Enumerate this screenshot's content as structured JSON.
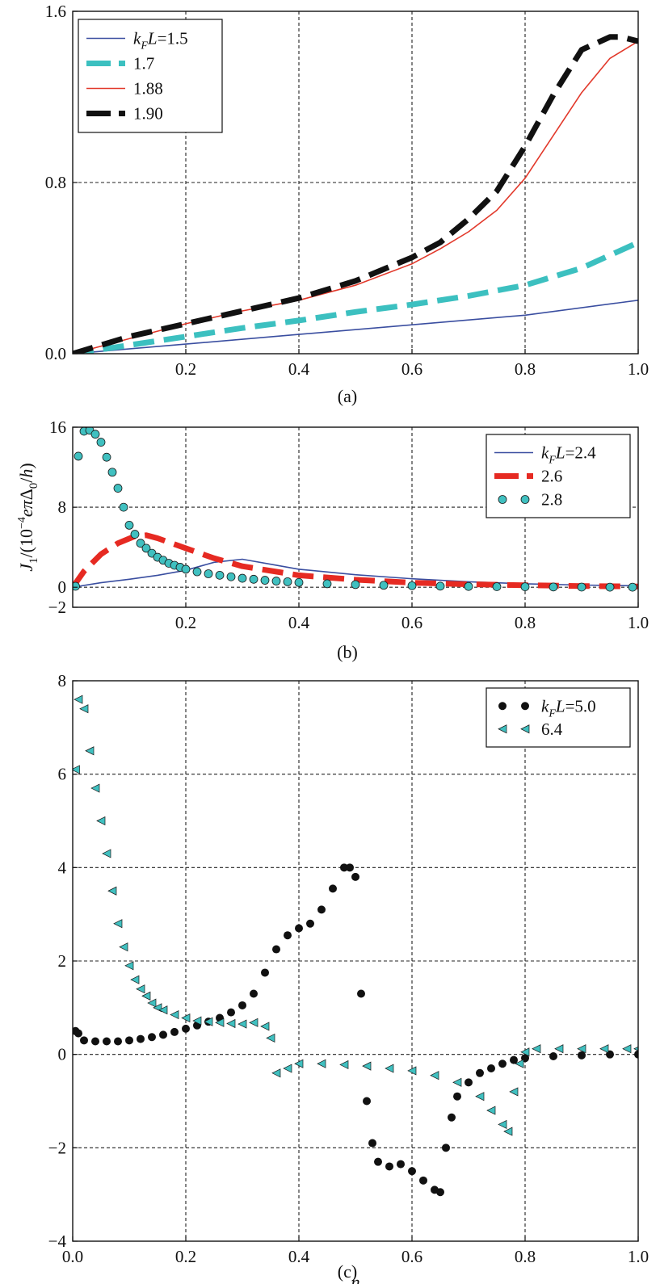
{
  "figure": {
    "panels_count": 3
  },
  "chart_data": [
    {
      "type": "line",
      "panel_label": "(a)",
      "xlabel": "",
      "ylabel": "",
      "xlim": [
        0.0,
        1.0
      ],
      "ylim": [
        0.0,
        1.6
      ],
      "xticks": [
        0.2,
        0.4,
        0.6,
        0.8,
        1.0
      ],
      "xtick_labels": [
        "0.2",
        "0.4",
        "0.6",
        "0.8",
        "1.0"
      ],
      "yticks": [
        0.0,
        0.8,
        1.6
      ],
      "ytick_labels": [
        "0.0",
        "0.8",
        "1.6"
      ],
      "grid": true,
      "legend_position": "top-left",
      "legend_prefix": "k_F L = ",
      "series": [
        {
          "name": "1.5",
          "style": "thin-solid",
          "color": "#3a4ea0",
          "x": [
            0,
            0.2,
            0.4,
            0.6,
            0.8,
            1.0
          ],
          "y": [
            0,
            0.045,
            0.09,
            0.135,
            0.18,
            0.25
          ]
        },
        {
          "name": "1.7",
          "style": "thick-dashed",
          "color": "#3cc0c0",
          "x": [
            0,
            0.1,
            0.2,
            0.3,
            0.4,
            0.5,
            0.6,
            0.7,
            0.8,
            0.9,
            1.0
          ],
          "y": [
            0,
            0.04,
            0.08,
            0.12,
            0.155,
            0.195,
            0.23,
            0.27,
            0.32,
            0.4,
            0.52
          ]
        },
        {
          "name": "1.88",
          "style": "thin-solid",
          "color": "#e2382a",
          "x": [
            0,
            0.1,
            0.2,
            0.3,
            0.4,
            0.5,
            0.6,
            0.65,
            0.7,
            0.75,
            0.8,
            0.85,
            0.9,
            0.95,
            1.0
          ],
          "y": [
            0,
            0.07,
            0.14,
            0.2,
            0.25,
            0.32,
            0.42,
            0.49,
            0.57,
            0.67,
            0.82,
            1.02,
            1.22,
            1.38,
            1.46
          ]
        },
        {
          "name": "1.90",
          "style": "thick-dashed",
          "color": "#111111",
          "x": [
            0,
            0.1,
            0.2,
            0.3,
            0.4,
            0.5,
            0.6,
            0.65,
            0.7,
            0.75,
            0.8,
            0.85,
            0.9,
            0.95,
            0.97,
            1.0
          ],
          "y": [
            0,
            0.08,
            0.14,
            0.2,
            0.26,
            0.34,
            0.45,
            0.52,
            0.63,
            0.76,
            0.97,
            1.21,
            1.42,
            1.48,
            1.48,
            1.46
          ]
        }
      ]
    },
    {
      "type": "line",
      "panel_label": "(b)",
      "xlabel": "",
      "ylabel": "J_1/(10^-4 eπΔ_0/h)",
      "xlim": [
        0.0,
        1.0
      ],
      "ylim": [
        -2,
        16
      ],
      "xticks": [
        0.2,
        0.4,
        0.6,
        0.8,
        1.0
      ],
      "xtick_labels": [
        "0.2",
        "0.4",
        "0.6",
        "0.8",
        "1.0"
      ],
      "yticks": [
        -2,
        0,
        8,
        16
      ],
      "ytick_labels": [
        "−2",
        "0",
        "8",
        "16"
      ],
      "grid": true,
      "legend_position": "top-right",
      "legend_prefix": "k_F L = ",
      "series": [
        {
          "name": "2.4",
          "style": "thin-solid",
          "color": "#3a4ea0",
          "x": [
            0,
            0.05,
            0.1,
            0.15,
            0.2,
            0.25,
            0.3,
            0.35,
            0.4,
            0.5,
            0.6,
            0.7,
            0.8,
            0.9,
            1.0
          ],
          "y": [
            0,
            0.45,
            0.8,
            1.2,
            1.7,
            2.5,
            2.8,
            2.3,
            1.8,
            1.25,
            0.85,
            0.55,
            0.35,
            0.22,
            0.15
          ]
        },
        {
          "name": "2.6",
          "style": "thick-dashed",
          "color": "#e62a22",
          "x": [
            0,
            0.02,
            0.05,
            0.08,
            0.11,
            0.13,
            0.15,
            0.2,
            0.25,
            0.3,
            0.4,
            0.5,
            0.6,
            0.7,
            0.8,
            0.9,
            1.0
          ],
          "y": [
            0,
            1.6,
            3.3,
            4.4,
            5.1,
            5.2,
            4.9,
            3.9,
            2.9,
            2.1,
            1.2,
            0.75,
            0.45,
            0.3,
            0.2,
            0.12,
            0.08
          ]
        },
        {
          "name": "2.8",
          "style": "markers-circle",
          "color": "#40c0c0",
          "x": [
            0.005,
            0.01,
            0.02,
            0.03,
            0.04,
            0.05,
            0.06,
            0.07,
            0.08,
            0.09,
            0.1,
            0.11,
            0.12,
            0.13,
            0.14,
            0.15,
            0.16,
            0.17,
            0.18,
            0.19,
            0.2,
            0.22,
            0.24,
            0.26,
            0.28,
            0.3,
            0.32,
            0.34,
            0.36,
            0.38,
            0.4,
            0.45,
            0.5,
            0.55,
            0.6,
            0.65,
            0.7,
            0.75,
            0.8,
            0.85,
            0.9,
            0.95,
            0.99
          ],
          "y": [
            0.1,
            13.1,
            15.6,
            15.7,
            15.3,
            14.5,
            13.0,
            11.5,
            9.9,
            8.0,
            6.2,
            5.3,
            4.4,
            3.9,
            3.4,
            3.0,
            2.7,
            2.4,
            2.2,
            2.0,
            1.8,
            1.55,
            1.35,
            1.2,
            1.05,
            0.9,
            0.8,
            0.7,
            0.62,
            0.55,
            0.48,
            0.35,
            0.27,
            0.2,
            0.15,
            0.11,
            0.08,
            0.06,
            0.05,
            0.03,
            0.02,
            0.01,
            0.01
          ]
        }
      ]
    },
    {
      "type": "scatter",
      "panel_label": "(c)",
      "xlabel": "η",
      "ylabel": "",
      "xlim": [
        0.0,
        1.0
      ],
      "ylim": [
        -4,
        8
      ],
      "xticks": [
        0.0,
        0.2,
        0.4,
        0.6,
        0.8,
        1.0
      ],
      "xtick_labels": [
        "0.0",
        "0.2",
        "0.4",
        "0.6",
        "0.8",
        "1.0"
      ],
      "yticks": [
        -4,
        -2,
        0,
        2,
        4,
        6,
        8
      ],
      "ytick_labels": [
        "−4",
        "−2",
        "0",
        "2",
        "4",
        "6",
        "8"
      ],
      "grid": true,
      "legend_position": "top-right",
      "legend_prefix": "k_F L = ",
      "series": [
        {
          "name": "5.0",
          "style": "markers-dot",
          "color": "#111111",
          "x": [
            0.005,
            0.01,
            0.02,
            0.04,
            0.06,
            0.08,
            0.1,
            0.12,
            0.14,
            0.16,
            0.18,
            0.2,
            0.22,
            0.24,
            0.26,
            0.28,
            0.3,
            0.32,
            0.34,
            0.36,
            0.38,
            0.4,
            0.42,
            0.44,
            0.46,
            0.48,
            0.49,
            0.5,
            0.51,
            0.52,
            0.53,
            0.54,
            0.56,
            0.58,
            0.6,
            0.62,
            0.64,
            0.65,
            0.66,
            0.67,
            0.68,
            0.7,
            0.72,
            0.74,
            0.76,
            0.78,
            0.8,
            0.85,
            0.9,
            0.95,
            1.0
          ],
          "y": [
            0.5,
            0.45,
            0.3,
            0.28,
            0.28,
            0.28,
            0.3,
            0.33,
            0.37,
            0.42,
            0.48,
            0.55,
            0.62,
            0.7,
            0.78,
            0.9,
            1.05,
            1.3,
            1.75,
            2.25,
            2.55,
            2.7,
            2.8,
            3.1,
            3.55,
            4.0,
            4.0,
            3.8,
            1.3,
            -1.0,
            -1.9,
            -2.3,
            -2.4,
            -2.35,
            -2.5,
            -2.7,
            -2.9,
            -2.95,
            -2.0,
            -1.35,
            -0.9,
            -0.6,
            -0.4,
            -0.3,
            -0.2,
            -0.12,
            -0.08,
            -0.04,
            -0.02,
            0.0,
            0.0
          ]
        },
        {
          "name": "6.4",
          "style": "markers-triangle",
          "color": "#40c0c0",
          "x": [
            0.005,
            0.01,
            0.02,
            0.03,
            0.04,
            0.05,
            0.06,
            0.07,
            0.08,
            0.09,
            0.1,
            0.11,
            0.12,
            0.13,
            0.14,
            0.15,
            0.16,
            0.18,
            0.2,
            0.22,
            0.24,
            0.26,
            0.28,
            0.3,
            0.32,
            0.34,
            0.35,
            0.36,
            0.38,
            0.4,
            0.44,
            0.48,
            0.52,
            0.56,
            0.6,
            0.64,
            0.68,
            0.72,
            0.74,
            0.76,
            0.77,
            0.78,
            0.79,
            0.8,
            0.82,
            0.86,
            0.9,
            0.94,
            0.98,
            1.0
          ],
          "y": [
            6.1,
            7.6,
            7.4,
            6.5,
            5.7,
            5.0,
            4.3,
            3.5,
            2.8,
            2.3,
            1.9,
            1.6,
            1.4,
            1.25,
            1.1,
            1.0,
            0.95,
            0.85,
            0.78,
            0.72,
            0.7,
            0.68,
            0.66,
            0.65,
            0.68,
            0.6,
            0.35,
            -0.4,
            -0.3,
            -0.2,
            -0.2,
            -0.22,
            -0.25,
            -0.3,
            -0.35,
            -0.45,
            -0.6,
            -0.9,
            -1.2,
            -1.5,
            -1.65,
            -0.8,
            -0.2,
            0.05,
            0.12,
            0.12,
            0.12,
            0.12,
            0.12,
            0.12
          ]
        }
      ]
    }
  ],
  "colors": {
    "grid": "#222222",
    "frame": "#111111",
    "background": "#ffffff"
  }
}
